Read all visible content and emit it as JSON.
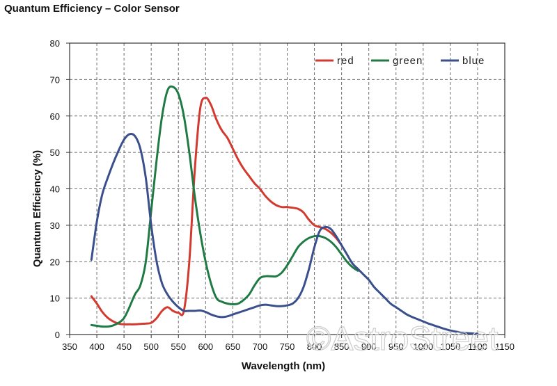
{
  "chart_data": {
    "type": "line",
    "title": "Quantum Efficiency – Color Sensor",
    "xlabel": "Wavelength (nm)",
    "ylabel": "Quantum Efficiency (%)",
    "xlim": [
      350,
      1150
    ],
    "ylim": [
      0,
      80
    ],
    "xticks": [
      350,
      400,
      450,
      500,
      550,
      600,
      650,
      700,
      750,
      800,
      850,
      900,
      950,
      1000,
      1050,
      1100,
      1150
    ],
    "yticks": [
      0,
      10,
      20,
      30,
      40,
      50,
      60,
      70,
      80
    ],
    "grid": true,
    "legend_position": "top-right",
    "series": [
      {
        "name": "red",
        "color": "#d23a30",
        "x": [
          390,
          400,
          410,
          420,
          430,
          440,
          450,
          460,
          470,
          480,
          490,
          500,
          510,
          520,
          530,
          540,
          550,
          560,
          570,
          580,
          590,
          600,
          610,
          620,
          630,
          640,
          650,
          660,
          670,
          680,
          690,
          700,
          710,
          720,
          730,
          740,
          750,
          760,
          770,
          780,
          790,
          800,
          810,
          820,
          830,
          840,
          850
        ],
        "y": [
          10.5,
          8.5,
          6.2,
          4.6,
          3.6,
          3.0,
          2.8,
          2.8,
          2.8,
          2.9,
          3.0,
          3.2,
          4.5,
          6.5,
          7.5,
          6.5,
          6.0,
          6.5,
          20,
          45,
          62,
          65,
          63,
          59,
          56,
          54,
          51,
          48,
          45.5,
          43.5,
          41.5,
          40,
          38,
          36.5,
          35.5,
          35,
          35,
          34.8,
          34.5,
          33.5,
          31.5,
          30,
          29.5,
          29,
          28,
          26.5,
          24.5
        ]
      },
      {
        "name": "green",
        "color": "#1f7a44",
        "x": [
          390,
          400,
          410,
          420,
          430,
          440,
          450,
          460,
          470,
          480,
          490,
          500,
          510,
          520,
          530,
          540,
          550,
          560,
          570,
          580,
          590,
          600,
          610,
          620,
          630,
          640,
          650,
          660,
          670,
          680,
          690,
          700,
          710,
          720,
          730,
          740,
          750,
          760,
          770,
          780,
          790,
          800,
          810,
          820,
          830,
          840,
          850,
          860,
          870,
          880
        ],
        "y": [
          2.6,
          2.4,
          2.2,
          2.2,
          2.5,
          3.2,
          4.5,
          7.5,
          11,
          13.5,
          20,
          34,
          48,
          60,
          67,
          68,
          66,
          60,
          50,
          38,
          28,
          20,
          14,
          10,
          9,
          8.5,
          8.3,
          8.5,
          9.5,
          11,
          13.5,
          15.5,
          16,
          16,
          16,
          17,
          19,
          21.5,
          24,
          25.5,
          26.5,
          27,
          27,
          26.5,
          25.5,
          24,
          22,
          20,
          18.5,
          17.5
        ]
      },
      {
        "name": "blue",
        "color": "#3a4f8c",
        "x": [
          390,
          400,
          410,
          420,
          430,
          440,
          450,
          460,
          470,
          480,
          490,
          500,
          510,
          520,
          530,
          540,
          550,
          560,
          570,
          580,
          590,
          600,
          610,
          620,
          630,
          640,
          650,
          660,
          670,
          680,
          690,
          700,
          710,
          720,
          730,
          740,
          750,
          760,
          770,
          780,
          790,
          800,
          810,
          820,
          830,
          840,
          850,
          860,
          870,
          880,
          890,
          900,
          910,
          920,
          930,
          940,
          950,
          960,
          970,
          980,
          990,
          1000,
          1010,
          1020,
          1030,
          1040,
          1050,
          1060,
          1070,
          1080,
          1090,
          1100
        ],
        "y": [
          20.5,
          31,
          38.5,
          43,
          47,
          50.5,
          53.5,
          55,
          54.5,
          51,
          43,
          30,
          20,
          14,
          11,
          9,
          7.5,
          6.5,
          6.5,
          6.5,
          6.6,
          6.2,
          5.5,
          5,
          4.8,
          5,
          5.5,
          6,
          6.5,
          7,
          7.5,
          8,
          8.2,
          8,
          7.8,
          7.8,
          8,
          8.5,
          10,
          13,
          18,
          24,
          28.5,
          29.5,
          29,
          27,
          24.5,
          22,
          19.5,
          18,
          16.5,
          15,
          13,
          11.5,
          10,
          8.5,
          7.5,
          6.5,
          5.5,
          4.8,
          4.2,
          3.6,
          3,
          2.5,
          2,
          1.5,
          1.1,
          0.8,
          0.6,
          0.4,
          0.3,
          0.2
        ]
      }
    ]
  },
  "watermark": "©AstroStreet"
}
